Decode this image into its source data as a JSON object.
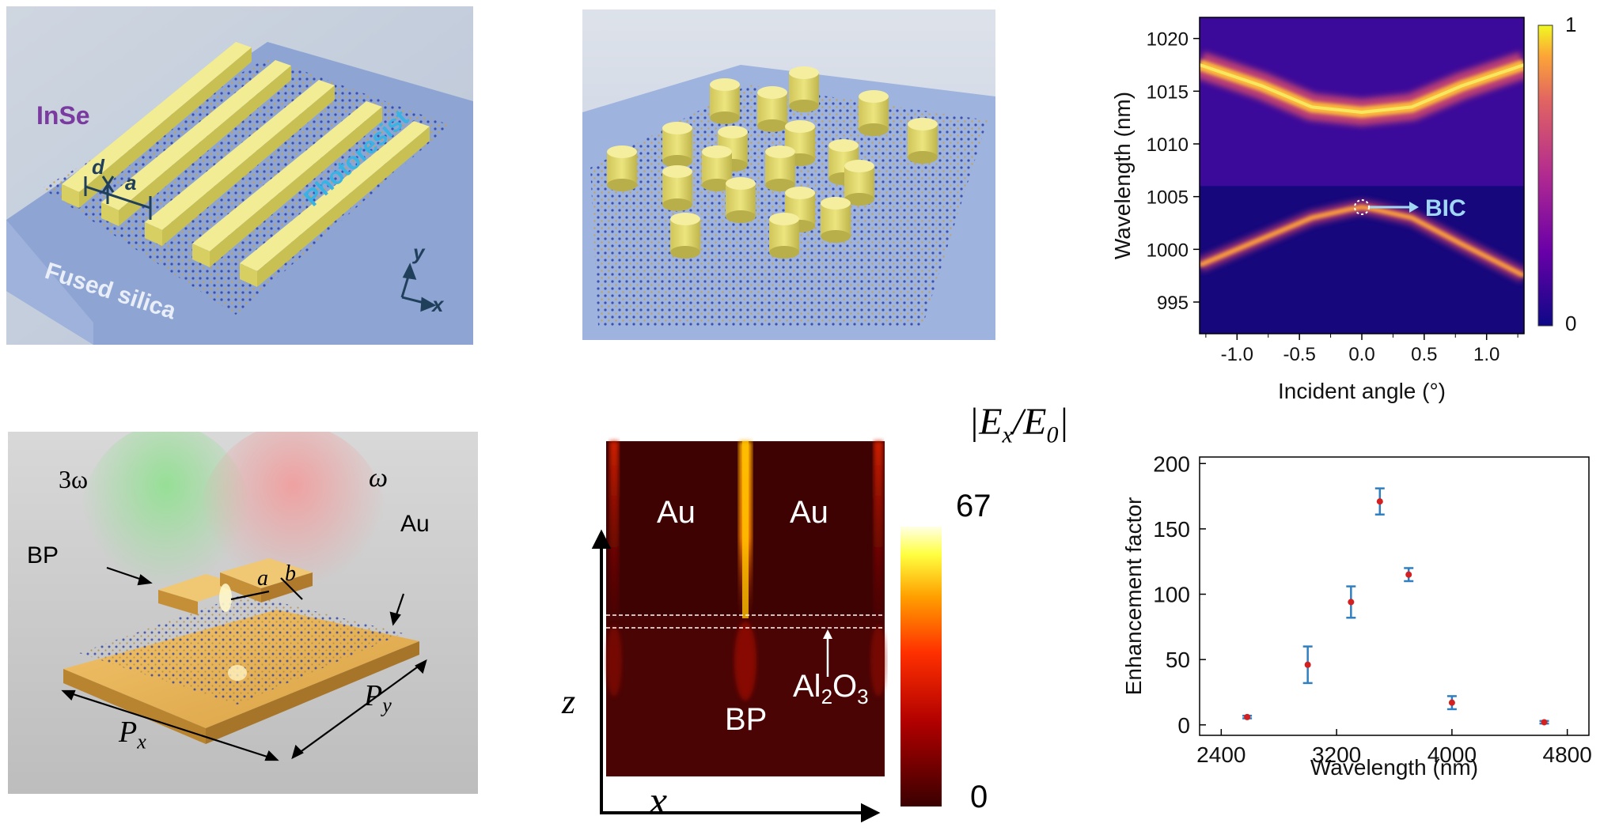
{
  "panel_a": {
    "labels": {
      "inse": "InSe",
      "photoresist": "Photoresist",
      "fused_silica": "Fused silica",
      "d": "d",
      "a": "a",
      "y": "y",
      "x": "x"
    },
    "colors": {
      "bg": "#c9d3e0",
      "substrate": "#8fa7d6",
      "bar": "#e9e07a",
      "inse_label": "#7a3aa0",
      "photoresist_label": "#3fb6e3"
    }
  },
  "panel_b": {
    "colors": {
      "bg": "#b9c6e2",
      "cylinder": "#e6de78"
    }
  },
  "panel_c": {
    "chart_data": {
      "type": "heatmap",
      "title": "",
      "xlabel": "Incident angle (°)",
      "ylabel": "Wavelength (nm)",
      "xlim": [
        -1.3,
        1.3
      ],
      "ylim": [
        992,
        1022
      ],
      "xticks": [
        "-1.0",
        "-0.5",
        "0.0",
        "0.5",
        "1.0"
      ],
      "xtick_values": [
        -1.0,
        -0.5,
        0.0,
        0.5,
        1.0
      ],
      "yticks": [
        "995",
        "1000",
        "1005",
        "1010",
        "1015",
        "1020"
      ],
      "ytick_values": [
        995,
        1000,
        1005,
        1010,
        1015,
        1020
      ],
      "colorbar": {
        "min_label": "0",
        "max_label": "1",
        "min": 0,
        "max": 1
      },
      "upper_band": {
        "angles": [
          -1.3,
          -0.8,
          -0.4,
          0.0,
          0.4,
          0.8,
          1.3
        ],
        "wavelengths": [
          1017.5,
          1015.5,
          1013.5,
          1013,
          1013.5,
          1015.5,
          1017.5
        ]
      },
      "lower_band": {
        "angles": [
          -1.3,
          -0.8,
          -0.4,
          -0.1,
          0.0,
          0.1,
          0.4,
          0.8,
          1.3
        ],
        "wavelengths": [
          998.5,
          1001,
          1003,
          1003.8,
          1004,
          1003.8,
          1003,
          1000.5,
          997.5
        ]
      },
      "annotation": {
        "text": "BIC",
        "angle": 0.0,
        "wavelength": 1004
      }
    }
  },
  "panel_d": {
    "labels": {
      "three_omega": "3ω",
      "omega": "ω",
      "bp": "BP",
      "au": "Au",
      "a": "a",
      "b": "b",
      "px_main": "P",
      "px_sub": "x",
      "py_main": "P",
      "py_sub": "y"
    }
  },
  "panel_e": {
    "labels": {
      "au_left": "Au",
      "au_right": "Au",
      "bp": "BP",
      "al2o3_main": "Al",
      "al2o3_sub1": "2",
      "al2o3_mid": "O",
      "al2o3_sub2": "3",
      "z": "z",
      "x": "x",
      "colorbar_title": "|E",
      "colorbar_sub": "x",
      "colorbar_title2": "/E",
      "colorbar_sub2": "0",
      "colorbar_title3": "|",
      "cb_max": "67",
      "cb_min": "0"
    }
  },
  "panel_f": {
    "chart_data": {
      "type": "scatter",
      "title": "",
      "xlabel": "Wavelength (nm)",
      "ylabel": "Enhancement factor",
      "xlim": [
        2250,
        4950
      ],
      "ylim": [
        -8,
        205
      ],
      "xticks": [
        "2400",
        "3200",
        "4000",
        "4800"
      ],
      "xtick_values": [
        2400,
        3200,
        4000,
        4800
      ],
      "yticks": [
        "0",
        "50",
        "100",
        "150",
        "200"
      ],
      "ytick_values": [
        0,
        50,
        100,
        150,
        200
      ],
      "points": [
        {
          "x": 2580,
          "y": 6,
          "err": 1
        },
        {
          "x": 3000,
          "y": 46,
          "err": 14
        },
        {
          "x": 3300,
          "y": 94,
          "err": 12
        },
        {
          "x": 3500,
          "y": 171,
          "err": 10
        },
        {
          "x": 3700,
          "y": 115,
          "err": 5
        },
        {
          "x": 4000,
          "y": 17,
          "err": 5
        },
        {
          "x": 4640,
          "y": 2,
          "err": 1
        }
      ],
      "point_color": "#d42020",
      "error_color": "#2f7fc1"
    }
  }
}
